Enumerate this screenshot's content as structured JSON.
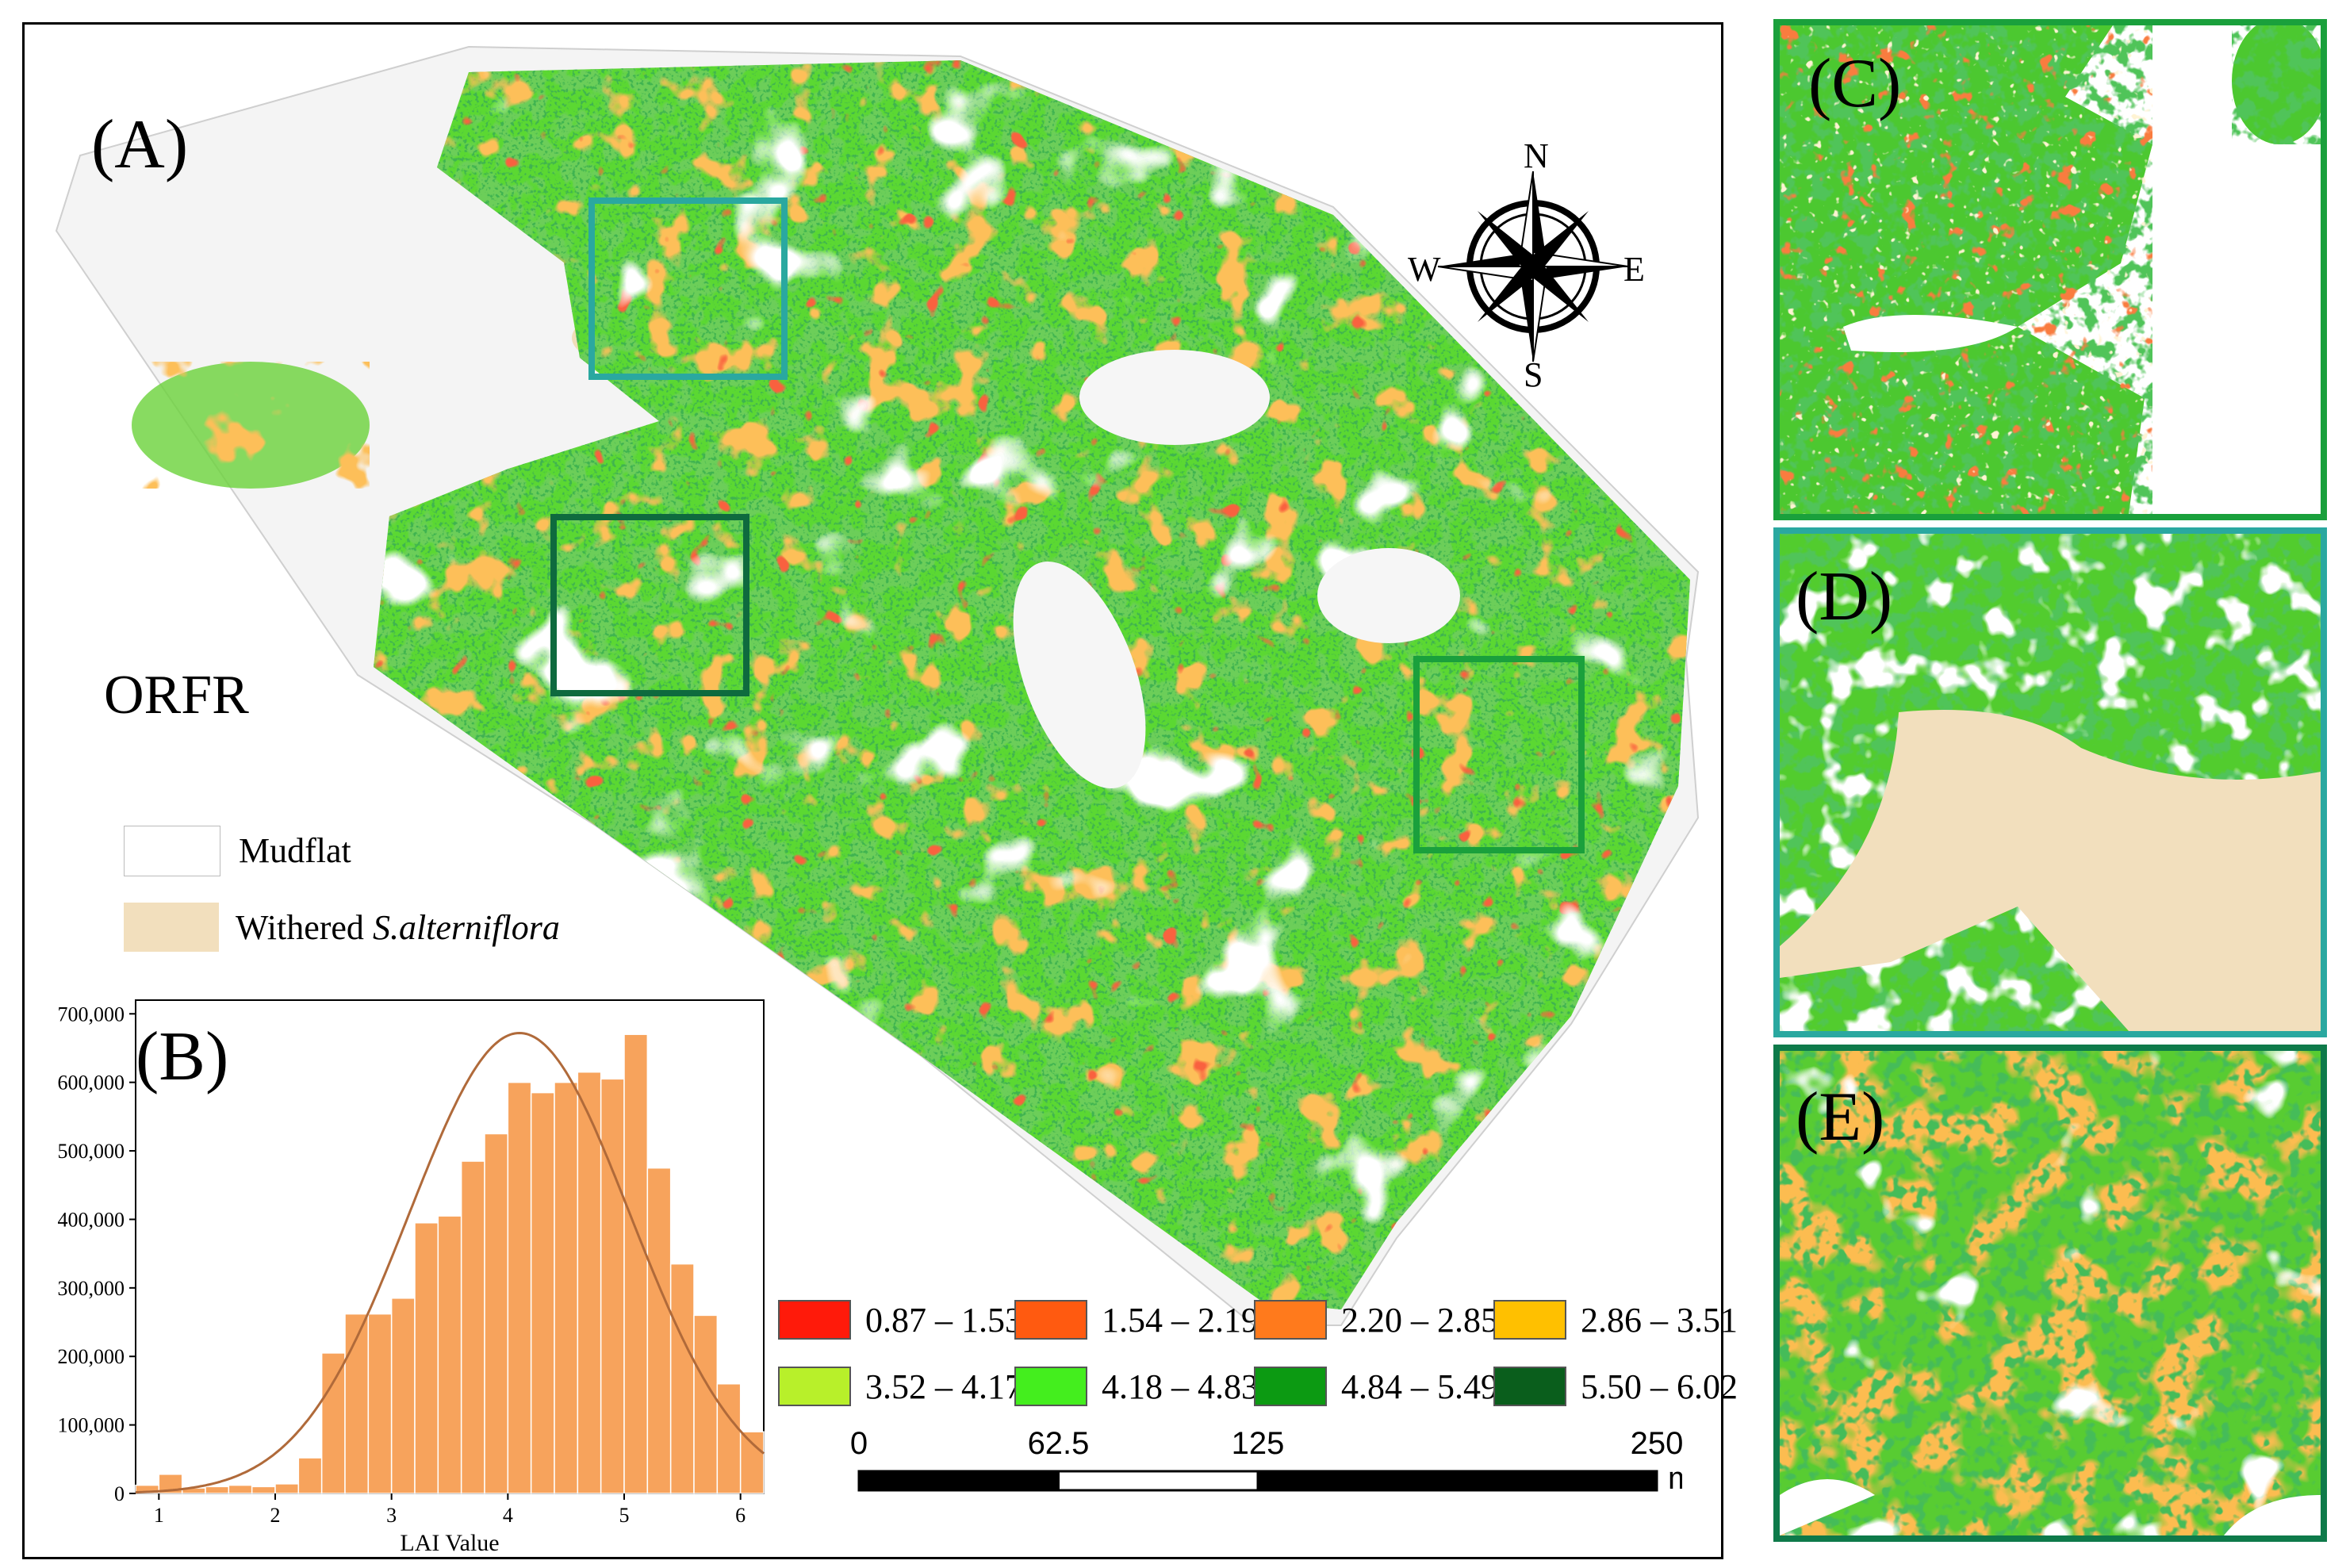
{
  "panels": {
    "a_label": "(A)",
    "b_label": "(B)",
    "c_label": "(C)",
    "d_label": "(D)",
    "e_label": "(E)"
  },
  "site_label": "ORFR",
  "compass": {
    "n": "N",
    "s": "S",
    "e": "E",
    "w": "W"
  },
  "cover_legend": {
    "mudflat": "Mudflat",
    "withered_prefix": "Withered ",
    "withered_species": "S.alterniflora",
    "mudflat_color": "#ffffff",
    "withered_color": "#f2dfbd"
  },
  "lai_legend": [
    {
      "label": "0.87 – 1.53",
      "color": "#ff1a0a"
    },
    {
      "label": "1.54 – 2.19",
      "color": "#ff5a10"
    },
    {
      "label": "2.20 – 2.85",
      "color": "#ff7a1c"
    },
    {
      "label": "2.86 – 3.51",
      "color": "#ffc000"
    },
    {
      "label": "3.52 – 4.17",
      "color": "#b8f02a"
    },
    {
      "label": "4.18 – 4.83",
      "color": "#44ee1e"
    },
    {
      "label": "4.84 – 5.49",
      "color": "#0c9a12"
    },
    {
      "label": "5.50 – 6.02",
      "color": "#0a5e1c"
    }
  ],
  "scale_bar": {
    "ticks": [
      "0",
      "62.5",
      "125",
      "250"
    ],
    "unit": "m",
    "stops": [
      0,
      62.5,
      125,
      250
    ]
  },
  "inset_colors": {
    "C": "#1aa03c",
    "D": "#2aa8a0",
    "E": "#0e7a4a"
  },
  "chart_data": {
    "type": "bar",
    "xlabel": "LAI Value",
    "ylabel": "",
    "xlim": [
      0.8,
      6.2
    ],
    "ylim": [
      0,
      720000
    ],
    "x_ticks": [
      1,
      2,
      3,
      4,
      5,
      6
    ],
    "y_ticks": [
      0,
      100000,
      200000,
      300000,
      400000,
      500000,
      600000,
      700000
    ],
    "y_tick_labels": [
      "0",
      "100,000",
      "200,000",
      "300,000",
      "400,000",
      "500,000",
      "600,000",
      "700,000"
    ],
    "bin_width": 0.2,
    "bin_starts": [
      0.8,
      1.0,
      1.2,
      1.4,
      1.6,
      1.8,
      2.0,
      2.2,
      2.4,
      2.6,
      2.8,
      3.0,
      3.2,
      3.4,
      3.6,
      3.8,
      4.0,
      4.2,
      4.4,
      4.6,
      4.8,
      5.0,
      5.2,
      5.4,
      5.6,
      5.8,
      6.0
    ],
    "values": [
      12000,
      28000,
      8000,
      10000,
      12000,
      10000,
      14000,
      52000,
      205000,
      262000,
      262000,
      285000,
      395000,
      405000,
      485000,
      525000,
      600000,
      585000,
      600000,
      615000,
      605000,
      670000,
      475000,
      335000,
      260000,
      160000,
      90000
    ],
    "fit_curve": {
      "mean": 4.1,
      "sd": 0.95,
      "peak": 672000,
      "color": "#b06a3a"
    },
    "bar_color": "#f7a35c"
  }
}
